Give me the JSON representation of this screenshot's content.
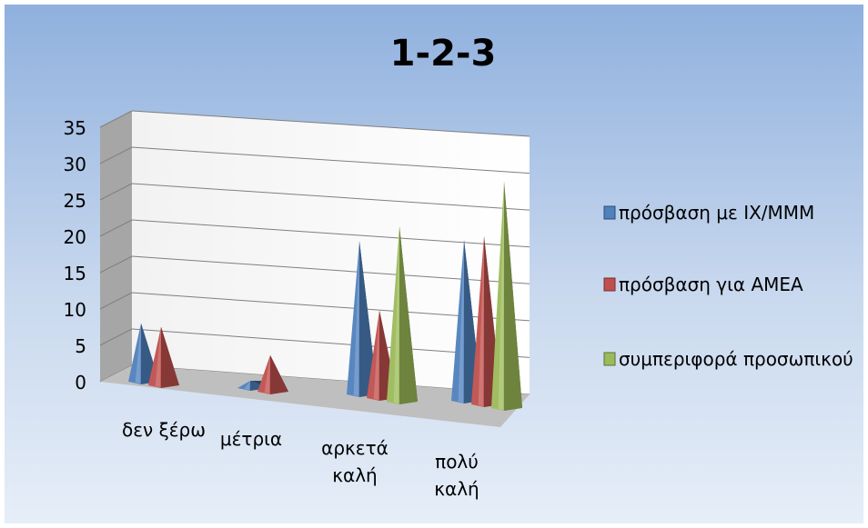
{
  "chart_data": {
    "type": "bar",
    "style": "3d-pyramid",
    "title": "1-2-3",
    "categories": [
      "δεν ξέρω",
      "μέτρια",
      "αρκετά καλή",
      "πολύ καλή"
    ],
    "yticks": [
      "0",
      "5",
      "10",
      "15",
      "20",
      "25",
      "30",
      "35"
    ],
    "ylim": [
      0,
      35
    ],
    "grid": true,
    "legend_position": "right",
    "series": [
      {
        "name": "πρόσβαση με ΙΧ/ΜΜΜ",
        "values": [
          8,
          1,
          21,
          22
        ],
        "color": "#4F81BD"
      },
      {
        "name": "πρόσβαση για ΑΜΕΑ",
        "values": [
          8,
          5,
          12,
          23
        ],
        "color": "#C0504D"
      },
      {
        "name": "συμπεριφορά προσωπικού",
        "values": [
          0,
          0,
          24,
          31
        ],
        "color": "#9BBB59"
      }
    ]
  }
}
